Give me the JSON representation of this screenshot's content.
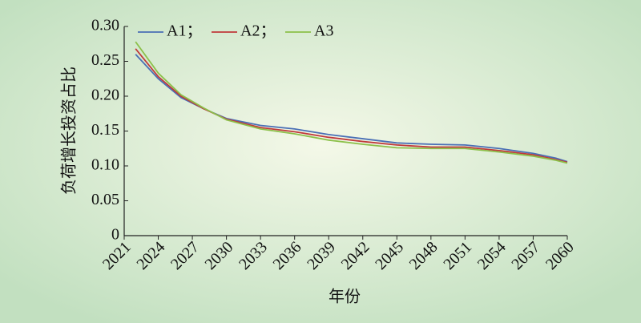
{
  "chart_data": {
    "type": "line",
    "x_label": "年份",
    "y_label": "负荷增长投资占比",
    "x": [
      2022,
      2024,
      2026,
      2028,
      2030,
      2033,
      2036,
      2039,
      2042,
      2045,
      2048,
      2051,
      2054,
      2057,
      2059,
      2060
    ],
    "series": [
      {
        "name": "A1；",
        "color": "#4a6fb5",
        "values": [
          0.26,
          0.225,
          0.198,
          0.182,
          0.168,
          0.158,
          0.153,
          0.145,
          0.139,
          0.133,
          0.131,
          0.13,
          0.125,
          0.118,
          0.111,
          0.106
        ]
      },
      {
        "name": "A2；",
        "color": "#c0393b",
        "values": [
          0.268,
          0.228,
          0.2,
          0.182,
          0.167,
          0.155,
          0.149,
          0.141,
          0.135,
          0.13,
          0.127,
          0.127,
          0.122,
          0.116,
          0.109,
          0.105
        ]
      },
      {
        "name": "A3",
        "color": "#8cc04a",
        "values": [
          0.278,
          0.233,
          0.202,
          0.183,
          0.166,
          0.153,
          0.146,
          0.137,
          0.131,
          0.126,
          0.125,
          0.125,
          0.12,
          0.114,
          0.108,
          0.104
        ]
      }
    ],
    "xlim": [
      2021,
      2060
    ],
    "xticks": [
      2021,
      2024,
      2027,
      2030,
      2033,
      2036,
      2039,
      2042,
      2045,
      2048,
      2051,
      2054,
      2057,
      2060
    ],
    "ylim": [
      0,
      0.3
    ],
    "yticks": [
      0,
      0.05,
      {
        "value": 0.1,
        "label": "0.10"
      },
      0.15,
      {
        "value": 0.2,
        "label": "0.20"
      },
      0.25,
      {
        "value": 0.3,
        "label": "0.30"
      }
    ],
    "legend": "top-left"
  }
}
